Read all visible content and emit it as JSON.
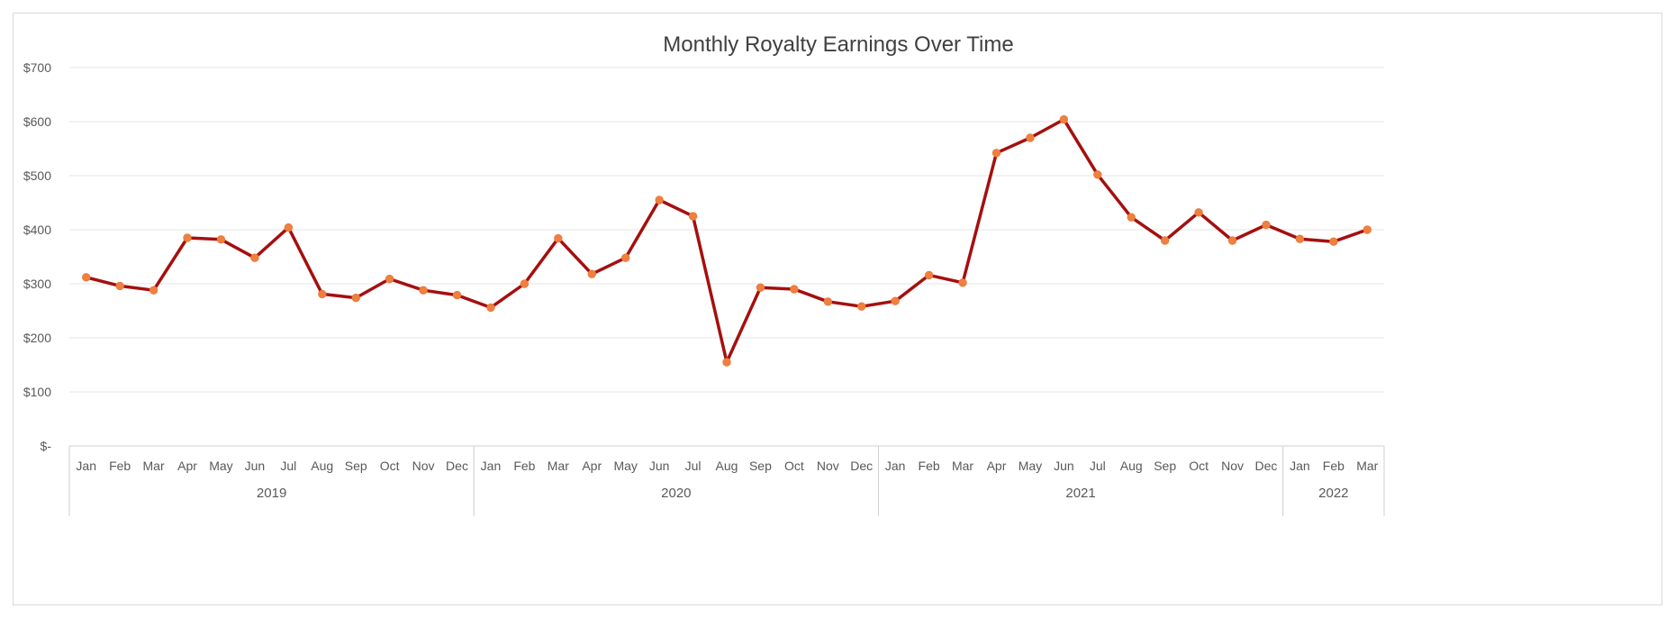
{
  "chart_data": {
    "type": "line",
    "title": "Monthly Royalty Earnings Over Time",
    "xlabel": "",
    "ylabel": "",
    "ylim": [
      0,
      700
    ],
    "yticks": [
      0,
      100,
      200,
      300,
      400,
      500,
      600,
      700
    ],
    "ytick_labels": [
      "$-",
      "$100",
      "$200",
      "$300",
      "$400",
      "$500",
      "$600",
      "$700"
    ],
    "grid": true,
    "legend": "none",
    "line_color": "#a50f0f",
    "marker_color": "#f08040",
    "years": [
      {
        "label": "2019",
        "months": 12
      },
      {
        "label": "2020",
        "months": 12
      },
      {
        "label": "2021",
        "months": 12
      },
      {
        "label": "2022",
        "months": 3
      }
    ],
    "categories": [
      "Jan",
      "Feb",
      "Mar",
      "Apr",
      "May",
      "Jun",
      "Jul",
      "Aug",
      "Sep",
      "Oct",
      "Nov",
      "Dec",
      "Jan",
      "Feb",
      "Mar",
      "Apr",
      "May",
      "Jun",
      "Jul",
      "Aug",
      "Sep",
      "Oct",
      "Nov",
      "Dec",
      "Jan",
      "Feb",
      "Mar",
      "Apr",
      "May",
      "Jun",
      "Jul",
      "Aug",
      "Sep",
      "Oct",
      "Nov",
      "Dec",
      "Jan",
      "Feb",
      "Mar"
    ],
    "values": [
      312,
      296,
      288,
      385,
      382,
      348,
      404,
      281,
      274,
      309,
      288,
      279,
      256,
      300,
      384,
      318,
      348,
      455,
      425,
      155,
      293,
      290,
      267,
      258,
      268,
      316,
      302,
      542,
      570,
      604,
      502,
      423,
      380,
      432,
      380,
      409,
      383,
      378,
      400
    ]
  }
}
